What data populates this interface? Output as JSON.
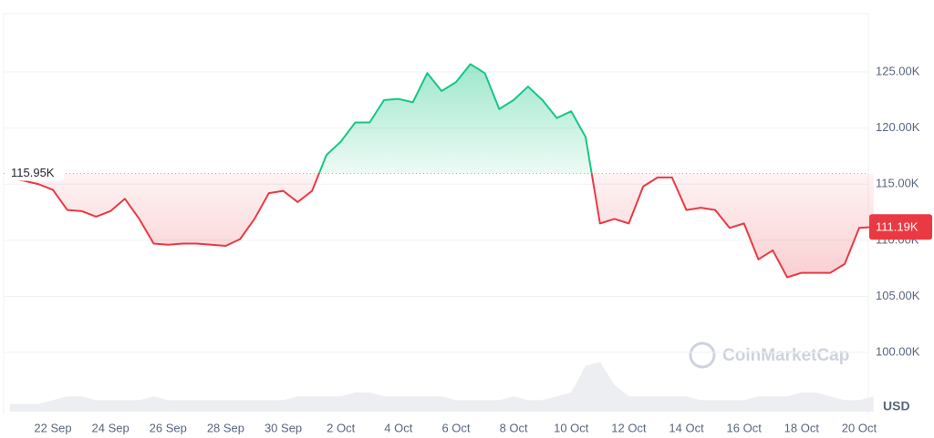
{
  "chart_data": {
    "type": "line",
    "categories": [
      null,
      null,
      null,
      "22 Sep",
      null,
      null,
      null,
      "24 Sep",
      null,
      null,
      null,
      "26 Sep",
      null,
      null,
      null,
      "28 Sep",
      null,
      null,
      null,
      "30 Sep",
      null,
      null,
      null,
      "2 Oct",
      null,
      null,
      null,
      "4 Oct",
      null,
      null,
      null,
      "6 Oct",
      null,
      null,
      null,
      "8 Oct",
      null,
      null,
      null,
      "10 Oct",
      null,
      null,
      null,
      "12 Oct",
      null,
      null,
      null,
      "14 Oct",
      null,
      null,
      null,
      "16 Oct",
      null,
      null,
      null,
      "18 Oct",
      null,
      null,
      null,
      "20 Oct",
      null
    ],
    "series": [
      {
        "name": "Price",
        "color_up": "#16c784",
        "color_down": "#ea3943",
        "values": [
          115500,
          115300,
          115000,
          114500,
          112700,
          112600,
          112100,
          112600,
          113700,
          111900,
          109700,
          109600,
          109700,
          109700,
          109600,
          109500,
          110100,
          111900,
          114200,
          114400,
          113400,
          114400,
          117600,
          118800,
          120500,
          120500,
          122500,
          122600,
          122300,
          124900,
          123300,
          124100,
          125700,
          124900,
          121700,
          122500,
          123700,
          122500,
          120900,
          121500,
          119200,
          111500,
          111900,
          111500,
          114800,
          115600,
          115600,
          112700,
          112900,
          112700,
          111100,
          111500,
          108300,
          109100,
          106700,
          107100,
          107100,
          107100,
          107900,
          111100,
          111190
        ],
        "last_value": 111190,
        "last_value_label": "111.19K"
      },
      {
        "name": "Volume",
        "color": "#eceef1",
        "values": [
          2,
          2,
          2,
          3,
          4,
          4,
          3,
          3,
          3,
          3,
          4,
          3,
          3,
          3,
          3,
          3,
          3,
          3,
          3,
          3,
          4,
          4,
          4,
          4,
          5,
          5,
          4,
          4,
          4,
          4,
          4,
          3,
          3,
          3,
          3,
          4,
          3,
          3,
          4,
          5,
          12,
          13,
          7,
          4,
          4,
          4,
          4,
          4,
          3,
          3,
          3,
          3,
          4,
          4,
          4,
          5,
          5,
          4,
          3,
          3,
          4
        ]
      }
    ],
    "baseline": {
      "value": 115950,
      "label": "115.95K"
    },
    "ylim": [
      94890,
      130200
    ],
    "yticks": [
      {
        "value": 100000,
        "label": "100.00K"
      },
      {
        "value": 105000,
        "label": "105.00K"
      },
      {
        "value": 110000,
        "label": "110.00K"
      },
      {
        "value": 115000,
        "label": "115.00K"
      },
      {
        "value": 120000,
        "label": "120.00K"
      },
      {
        "value": 125000,
        "label": "125.00K"
      }
    ],
    "grid": true,
    "currency": "USD",
    "watermark": "CoinMarketCap"
  }
}
